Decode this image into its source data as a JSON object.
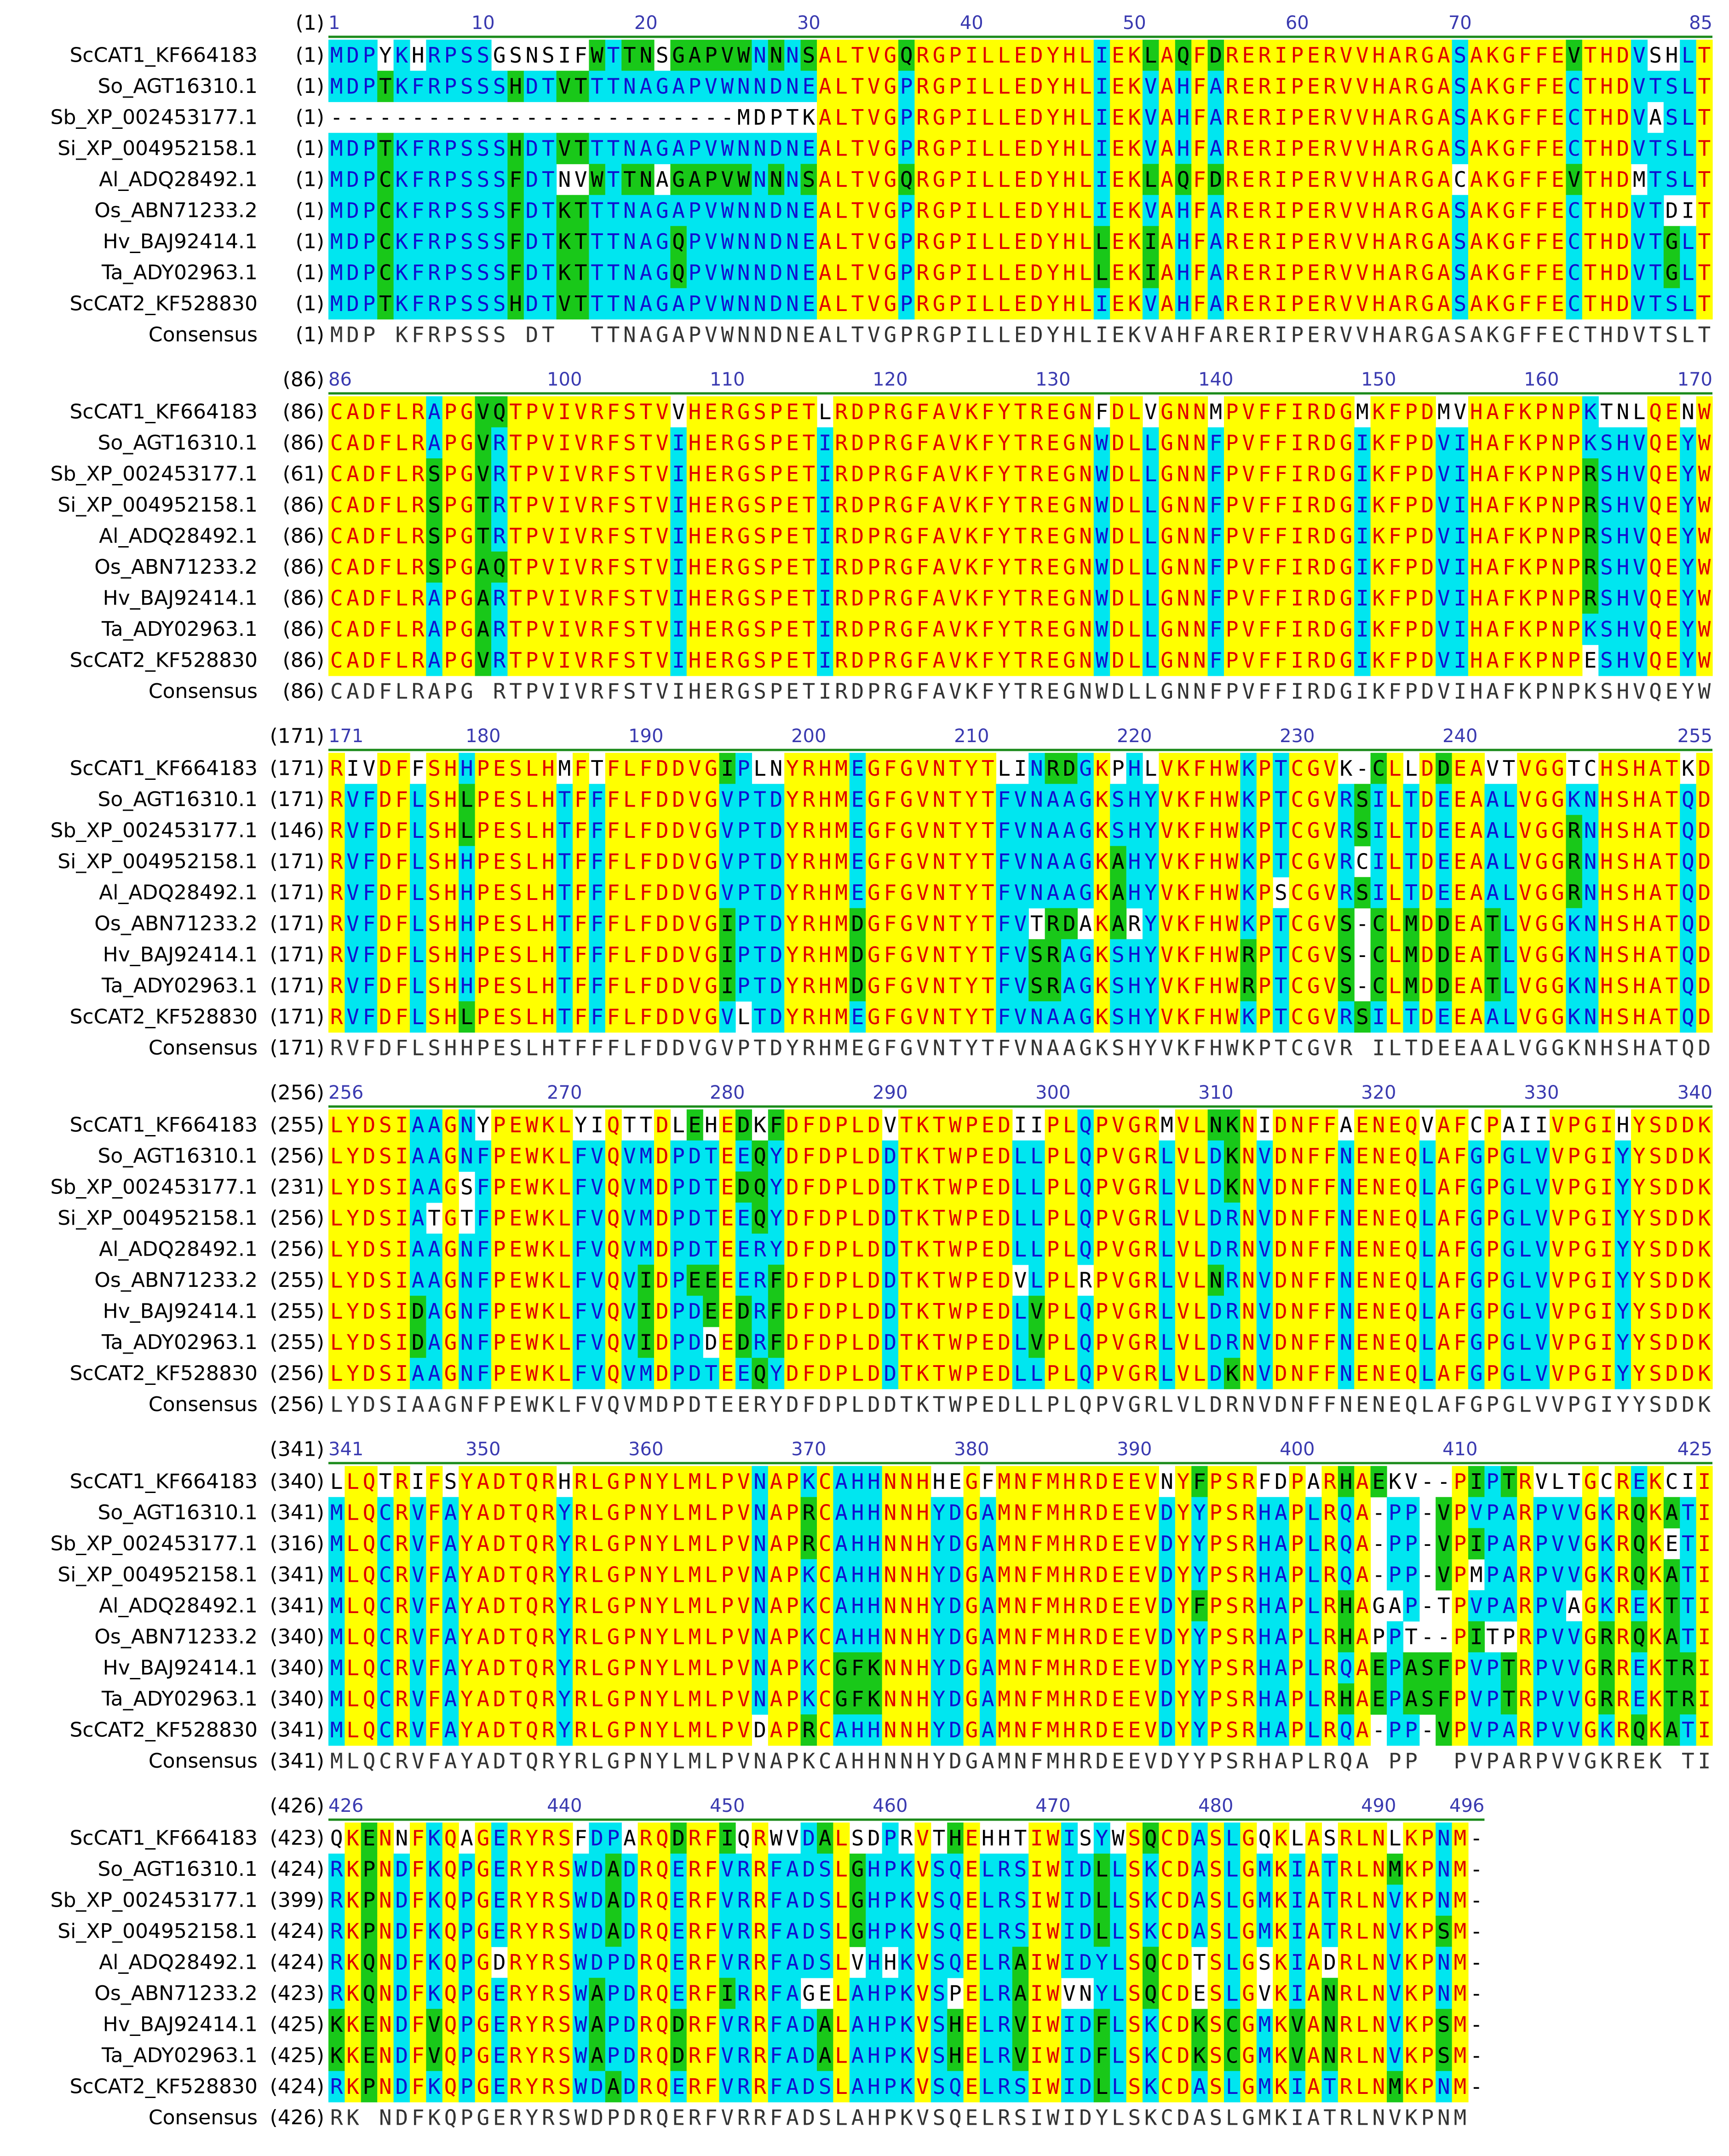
{
  "names": [
    "ScCAT1_KF664183",
    "So_AGT16310.1",
    "Sb_XP_002453177.1",
    "Si_XP_004952158.1",
    "Al_ADQ28492.1",
    "Os_ABN71233.2",
    "Hv_BAJ92414.1",
    "Ta_ADY02963.1",
    "ScCAT2_KF528830",
    "Consensus"
  ],
  "blocks": [
    {
      "ruler": [
        1,
        10,
        20,
        30,
        40,
        50,
        60,
        70,
        85
      ],
      "starts": [
        "(1)",
        "(1)",
        "(1)",
        "(1)",
        "(1)",
        "(1)",
        "(1)",
        "(1)",
        "(1)",
        "(1)"
      ],
      "rows": [
        "MDPYKHRPSSGSNSIFWTTNSGAPVWNNNSALTVGQRGPILLEDYHLIEKLAQFDRERIPERVVHARGASAKGFFEVTHDVSHLT",
        "MDPTKFRPSSSHDTVTTTNAGAPVWNNDNEALTVGPRGPILLEDYHLIEKVAHFARERIPERVVHARGASAKGFFECTHDVTSLT",
        "-------------------------MDPTKALTVGPRGPILLEDYHLIEKVAHFARERIPERVVHARGASAKGFFECTHDVASLT",
        "MDPTKFRPSSSHDTVTTTNAGAPVWNNDNEALTVGPRGPILLEDYHLIEKVAHFARERIPERVVHARGASAKGFFECTHDVTSLT",
        "MDPCKFRPSSSFDTNVWTTNAGAPVWNNNSALTVGQRGPILLEDYHLIEKLAQFDRERIPERVVHARGACAKGFFEVTHDMTSLT",
        "MDPCKFRPSSSFDTKTTTNAGAPVWNNDNEALTVGPRGPILLEDYHLIEKVAHFARERIPERVVHARGASAKGFFECTHDVTDIT",
        "MDPCKFRPSSSFDTKTTTNAGQPVWNNDNEALTVGPRGPILLEDYHLLEKIAHFARERIPERVVHARGASAKGFFECTHDVTGLT",
        "MDPCKFRPSSSFDTKTTTNAGQPVWNNDNEALTVGPRGPILLEDYHLLEKIAHFARERIPERVVHARGASAKGFFECTHDVTGLT",
        "MDPTKFRPSSSHDTVTTTNAGAPVWNNDNEALTVGPRGPILLEDYHLIEKVAHFARERIPERVVHARGASAKGFFECTHDVTSLT",
        "MDP KFRPSSS DT  TTNAGAPVWNNDNEALTVGPRGPILLEDYHLIEKVAHFARERIPERVVHARGASAKGFFECTHDVTSLT"
      ]
    },
    {
      "ruler": [
        86,
        100,
        110,
        120,
        130,
        140,
        150,
        160,
        170
      ],
      "starts": [
        "(86)",
        "(86)",
        "(61)",
        "(86)",
        "(86)",
        "(86)",
        "(86)",
        "(86)",
        "(86)",
        "(86)"
      ],
      "rows": [
        "CADFLRAPGVQTPVIVRFSTVVHERGSPETLRDPRGFAVKFYTREGNFDLVGNNMPVFFIRDGMKFPDMVHAFKPNPKTNLQENW",
        "CADFLRAPGVRTPVIVRFSTVIHERGSPETIRDPRGFAVKFYTREGNWDLLGNNFPVFFIRDGIKFPDVIHAFKPNPKSHVQEYW",
        "CADFLRSPGVRTPVIVRFSTVIHERGSPETIRDPRGFAVKFYTREGNWDLLGNNFPVFFIRDGIKFPDVIHAFKPNPRSHVQEYW",
        "CADFLRSPGTRTPVIVRFSTVIHERGSPETIRDPRGFAVKFYTREGNWDLLGNNFPVFFIRDGIKFPDVIHAFKPNPRSHVQEYW",
        "CADFLRSPGTRTPVIVRFSTVIHERGSPETIRDPRGFAVKFYTREGNWDLLGNNFPVFFIRDGIKFPDVIHAFKPNPRSHVQEYW",
        "CADFLRSPGAQTPVIVRFSTVIHERGSPETIRDPRGFAVKFYTREGNWDLLGNNFPVFFIRDGIKFPDVIHAFKPNPRSHVQEYW",
        "CADFLRAPGARTPVIVRFSTVIHERGSPETIRDPRGFAVKFYTREGNWDLLGNNFPVFFIRDGIKFPDVIHAFKPNPRSHVQEYW",
        "CADFLRAPGARTPVIVRFSTVIHERGSPETIRDPRGFAVKFYTREGNWDLLGNNFPVFFIRDGIKFPDVIHAFKPNPKSHVQEYW",
        "CADFLRAPGVRTPVIVRFSTVIHERGSPETIRDPRGFAVKFYTREGNWDLLGNNFPVFFIRDGIKFPDVIHAFKPNPESHVQEYW",
        "CADFLRAPG RTPVIVRFSTVIHERGSPETIRDPRGFAVKFYTREGNWDLLGNNFPVFFIRDGIKFPDVIHAFKPNPKSHVQEYW"
      ]
    },
    {
      "ruler": [
        171,
        180,
        190,
        200,
        210,
        220,
        230,
        240,
        255
      ],
      "starts": [
        "(171)",
        "(171)",
        "(146)",
        "(171)",
        "(171)",
        "(171)",
        "(171)",
        "(171)",
        "(171)",
        "(171)"
      ],
      "rows": [
        "RIVDFFSHHPESLHMFTFLFDDVGIPLNYRHMEGFGVNTYTLINRDGKPHLVKFHWKPTCGVK-CLLDDEAVTVGGTCHSHATKD",
        "RVFDFLSHLPESLHTFFFLFDDVGVPTDYRHMEGFGVNTYTFVNAAGKSHYVKFHWKPTCGVRSILTDEEAALVGGKNHSHATQD",
        "RVFDFLSHLPESLHTFFFLFDDVGVPTDYRHMEGFGVNTYTFVNAAGKSHYVKFHWKPTCGVRSILTDEEAALVGGRNHSHATQD",
        "RVFDFLSHHPESLHTFFFLFDDVGVPTDYRHMEGFGVNTYTFVNAAGKAHYVKFHWKPTCGVRCILTDEEAALVGGRNHSHATQD",
        "RVFDFLSHHPESLHTFFFLFDDVGVPTDYRHMEGFGVNTYTFVNAAGKAHYVKFHWKPSCGVRSILTDEEAALVGGRNHSHATQD",
        "RVFDFLSHHPESLHTFFFLFDDVGIPTDYRHMDGFGVNTYTFVTRDAKARYVKFHWKPTCGVS-CLMDDEATLVGGKNHSHATQD",
        "RVFDFLSHHPESLHTFFFLFDDVGIPTDYRHMDGFGVNTYTFVSRAGKSHYVKFHWRPTCGVS-CLMDDEATLVGGKNHSHATQD",
        "RVFDFLSHHPESLHTFFFLFDDVGIPTDYRHMDGFGVNTYTFVSRAGKSHYVKFHWRPTCGVS-CLMDDEATLVGGKNHSHATQD",
        "RVFDFLSHLPESLHTFFFLFDDVGVLTDYRHMEGFGVNTYTFVNAAGKSHYVKFHWKPTCGVRSILTDEEAALVGGKNHSHATQD",
        "RVFDFLSHHPESLHTFFFLFDDVGVPTDYRHMEGFGVNTYTFVNAAGKSHYVKFHWKPTCGVR ILTDEEAALVGGKNHSHATQD"
      ]
    },
    {
      "ruler": [
        256,
        270,
        280,
        290,
        300,
        310,
        320,
        330,
        340
      ],
      "starts": [
        "(255)",
        "(256)",
        "(231)",
        "(256)",
        "(256)",
        "(255)",
        "(255)",
        "(255)",
        "(256)",
        "(256)"
      ],
      "rows": [
        "LYDSIAAGNYPEWKLYIQTTDLEHEDKFDFDPLDVTKTWPEDIIPLQPVGRMVLNKNIDNFFAENEQVAFCPAIIVPGIHYSDDK",
        "LYDSIAAGNFPEWKLFVQVMDPDTEEQYDFDPLDDTKTWPEDLLPLQPVGRLVLDKNVDNFFNENEQLAFGPGLVVPGIYYSDDK",
        "LYDSIAAGSFPEWKLFVQVMDPDTEDQYDFDPLDDTKTWPEDLLPLQPVGRLVLDKNVDNFFNENEQLAFGPGLVVPGIYYSDDK",
        "LYDSIATGTFPEWKLFVQVMDPDTEEQYDFDPLDDTKTWPEDLLPLQPVGRLVLDRNVDNFFNENEQLAFGPGLVVPGIYYSDDK",
        "LYDSIAAGNFPEWKLFVQVMDPDTEERYDFDPLDDTKTWPEDLLPLQPVGRLVLDRNVDNFFNENEQLAFGPGLVVPGIYYSDDK",
        "LYDSIAAGNFPEWKLFVQVIDPEEEERFDFDPLDDTKTWPEDVLPLRPVGRLVLNRNVDNFFNENEQLAFGPGLVVPGIYYSDDK",
        "LYDSIDAGNFPEWKLFVQVIDPDEEDRFDFDPLDDTKTWPEDLVPLQPVGRLVLDRNVDNFFNENEQLAFGPGLVVPGIYYSDDK",
        "LYDSIDAGNFPEWKLFVQVIDPDDEDRFDFDPLDDTKTWPEDLVPLQPVGRLVLDRNVDNFFNENEQLAFGPGLVVPGIYYSDDK",
        "LYDSIAAGNFPEWKLFVQVMDPDTEEQYDFDPLDDTKTWPEDLLPLQPVGRLVLDKNVDNFFNENEQLAFGPGLVVPGIYYSDDK",
        "LYDSIAAGNFPEWKLFVQVMDPDTEERYDFDPLDDTKTWPEDLLPLQPVGRLVLDRNVDNFFNENEQLAFGPGLVVPGIYYSDDK"
      ]
    },
    {
      "ruler": [
        341,
        350,
        360,
        370,
        380,
        390,
        400,
        410,
        425
      ],
      "starts": [
        "(340)",
        "(341)",
        "(316)",
        "(341)",
        "(341)",
        "(340)",
        "(340)",
        "(340)",
        "(341)",
        "(341)"
      ],
      "rows": [
        "LLQTRIFSYADTQRHRLGPNYLMLPVNAPKCAHHNNHHEGFMNFMHRDEEVNYFPSRFDPARHAEKV--PIPTRVLTGCREKCII",
        "MLQCRVFAYADTQRYRLGPNYLMLPVNAPRCAHHNNHYDGAMNFMHRDEEVDYYPSRHAPLRQA-PP-VPVPARPVVGKRQKATI",
        "MLQCRVFAYADTQRYRLGPNYLMLPVNAPRCAHHNNHYDGAMNFMHRDEEVDYYPSRHAPLRQA-PP-VPIPARPVVGKRQKETI",
        "MLQCRVFAYADTQRYRLGPNYLMLPVNAPKCAHHNNHYDGAMNFMHRDEEVDYYPSRHAPLRQA-PP-VPMPARPVVGKRQKATI",
        "MLQCRVFAYADTQRYRLGPNYLMLPVNAPKCAHHNNHYDGAMNFMHRDEEVDYFPSRHAPLRHAGAP-TPVPARPVAGKREKTTI",
        "MLQCRVFAYADTQRYRLGPNYLMLPVNAPKCAHHNNHYDGAMNFMHRDEEVDYYPSRHAPLRHAPPT--PITPRPVVGRRQKATI",
        "MLQCRVFAYADTQRYRLGPNYLMLPVNAPKCGFKNNHYDGAMNFMHRDEEVDYYPSRHAPLRQAEPASFPVPTRPVVGRREKTRI",
        "MLQCRVFAYADTQRYRLGPNYLMLPVNAPKCGFKNNHYDGAMNFMHRDEEVDYYPSRHAPLRHAEPASFPVPTRPVVGRREKTRI",
        "MLQCRVFAYADTQRYRLGPNYLMLPVDAPRCAHHNNHYDGAMNFMHRDEEVDYYPSRHAPLRQA-PP-VPVPARPVVGKRQKATI",
        "MLQCRVFAYADTQRYRLGPNYLMLPVNAPKCAHHNNHYDGAMNFMHRDEEVDYYPSRHAPLRQA PP  PVPARPVVGKREK TI"
      ]
    },
    {
      "ruler": [
        426,
        440,
        450,
        460,
        470,
        480,
        490,
        496
      ],
      "starts": [
        "(423)",
        "(424)",
        "(399)",
        "(424)",
        "(424)",
        "(423)",
        "(425)",
        "(425)",
        "(424)",
        "(426)"
      ],
      "rows": [
        "QKENNFKQAGERYRSFDPARQDRFIQRWVDALSDPRVTHEHHTIWISYWSQCDASLGQKLASRLNLKPNM-",
        "RKPNDFKQPGERYRSWDADRQERFVRRFADSLGHPKVSQELRSIWIDLLSKCDASLGMKIATRLNMKPNM-",
        "RKPNDFKQPGERYRSWDADRQERFVRRFADSLGHPKVSQELRSIWIDLLSKCDASLGMKIATRLNVKPNM-",
        "RKPNDFKQPGERYRSWDADRQERFVRRFADSLGHPKVSQELRSIWIDLLSKCDASLGMKIATRLNVKPSM-",
        "RKQNDFKQPGDRYRSWDPDRQERFVRRFADSLVHHKVSQELRAIWIDYLSQCDTSLGSKIADRLNVKPNM-",
        "RKQNDFKQPGERYRSWAPDRQERFIRRFAGELAHPKVSPELRAIWVNYLSQCDESLGVKIANRLNVKPNM-",
        "KKENDFVQPGERYRSWAPDRQDRFVRRFADALAHPKVSHELRVIWIDFLSKCDKSCGMKVANRLNVKPSM-",
        "KKENDFVQPGERYRSWAPDRQDRFVRRFADALAHPKVSHELRVIWIDFLSKCDKSCGMKVANRLNVKPSM-",
        "RKPNDFKQPGERYRSWDADRQERFVRRFADSLAHPKVSQELRSIWIDLLSKCDASLGMKIATRLNMKPNM-",
        "RK NDFKQPGERYRSWDPDRQERFVRRFADSLAHPKVSQELRSIWIDYLSKCDASLGMKIATRLNVKPNM"
      ]
    }
  ]
}
